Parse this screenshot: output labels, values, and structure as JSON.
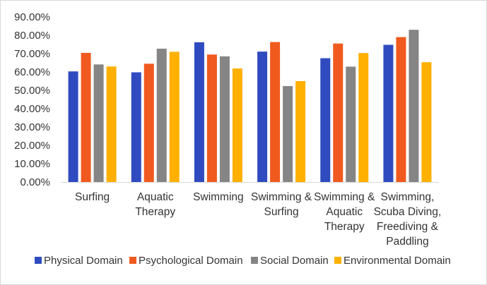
{
  "chart_data": {
    "type": "bar",
    "categories": [
      [
        "Surfing"
      ],
      [
        "Aquatic",
        "Therapy"
      ],
      [
        "Swimming"
      ],
      [
        "Swimming &",
        "Surfing"
      ],
      [
        "Swimming &",
        "Aquatic",
        "Therapy"
      ],
      [
        "Swimming,",
        "Scuba Diving,",
        "Freediving &",
        "Paddling"
      ]
    ],
    "series": [
      {
        "name": "Physical Domain",
        "color": "#2f4bbf",
        "values": [
          0.603,
          0.598,
          0.762,
          0.711,
          0.675,
          0.748
        ]
      },
      {
        "name": "Psychological Domain",
        "color": "#f05a1e",
        "values": [
          0.704,
          0.645,
          0.695,
          0.763,
          0.755,
          0.79
        ]
      },
      {
        "name": "Social Domain",
        "color": "#858585",
        "values": [
          0.641,
          0.727,
          0.685,
          0.523,
          0.629,
          0.83
        ]
      },
      {
        "name": "Environmental Domain",
        "color": "#ffb000",
        "values": [
          0.63,
          0.71,
          0.619,
          0.55,
          0.703,
          0.653
        ]
      }
    ],
    "yticks": [
      "0.00%",
      "10.00%",
      "20.00%",
      "30.00%",
      "40.00%",
      "50.00%",
      "60.00%",
      "70.00%",
      "80.00%",
      "90.00%"
    ],
    "ylim": [
      0,
      0.9
    ],
    "grid": false,
    "legend_position": "bottom",
    "title": "",
    "xlabel": "",
    "ylabel": ""
  }
}
